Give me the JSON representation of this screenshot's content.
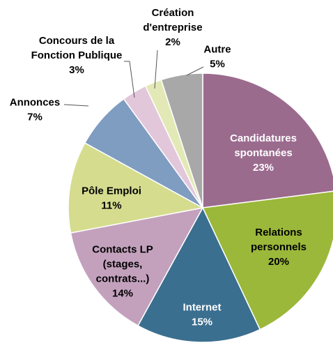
{
  "chart_data": {
    "type": "pie",
    "categories": [
      "Candidatures\nspontanées",
      "Relations\npersonnels",
      "Internet",
      "Contacts LP\n(stages,\ncontrats...)",
      "Pôle Emploi",
      "Annonces",
      "Concours de la\nFonction Publique",
      "Création\nd'entreprise",
      "Autre"
    ],
    "values": [
      23,
      20,
      15,
      14,
      11,
      7,
      3,
      2,
      5
    ],
    "value_labels": [
      "23%",
      "20%",
      "15%",
      "14%",
      "11%",
      "7%",
      "3%",
      "2%",
      "5%"
    ],
    "colors": [
      "#9b6b8e",
      "#9bb83a",
      "#3b6f8f",
      "#c3a1bd",
      "#d5dc8e",
      "#7f9cc1",
      "#e2c7da",
      "#e3e9b6",
      "#a8a8a8"
    ]
  }
}
